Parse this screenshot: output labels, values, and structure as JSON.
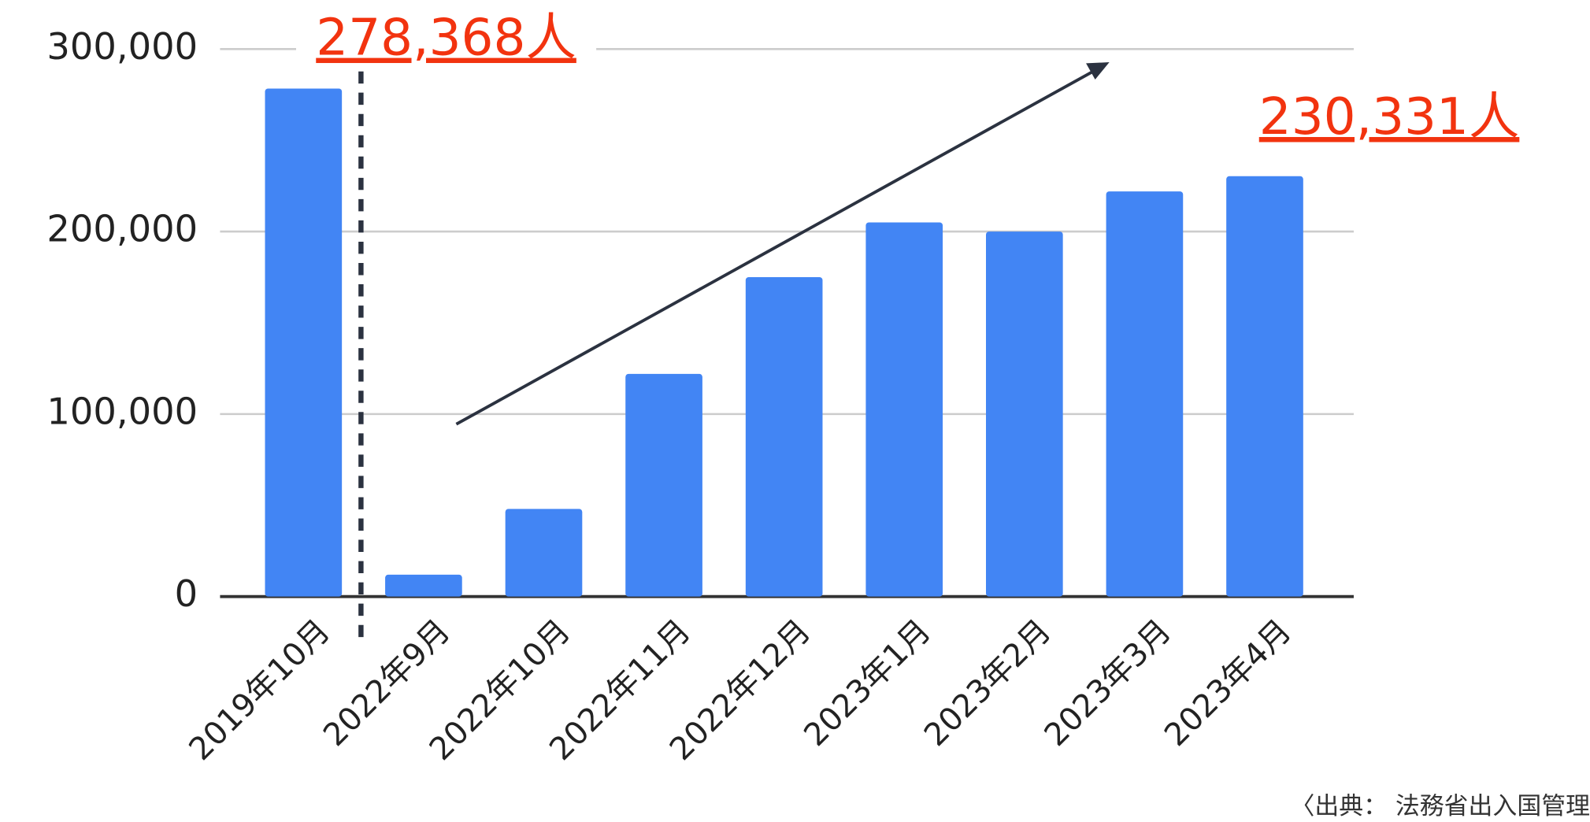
{
  "chart_data": {
    "type": "bar",
    "categories": [
      "2019年10月",
      "2022年9月",
      "2022年10月",
      "2022年11月",
      "2022年12月",
      "2023年1月",
      "2023年2月",
      "2023年3月",
      "2023年4月"
    ],
    "values": [
      278368,
      12000,
      48000,
      122000,
      175000,
      205000,
      200000,
      222000,
      230331
    ],
    "color": "#4285f4",
    "ylim": [
      0,
      300000
    ],
    "yticks": [
      0,
      {
        "value": 100000,
        "label": "100,000"
      },
      {
        "value": 200000,
        "label": "200,000"
      },
      {
        "value": 300000,
        "label": "300,000"
      }
    ],
    "grid": true,
    "annotations": [
      "278,368人",
      "230,331人"
    ],
    "source": "〈出典： 法務省出入国管理"
  }
}
